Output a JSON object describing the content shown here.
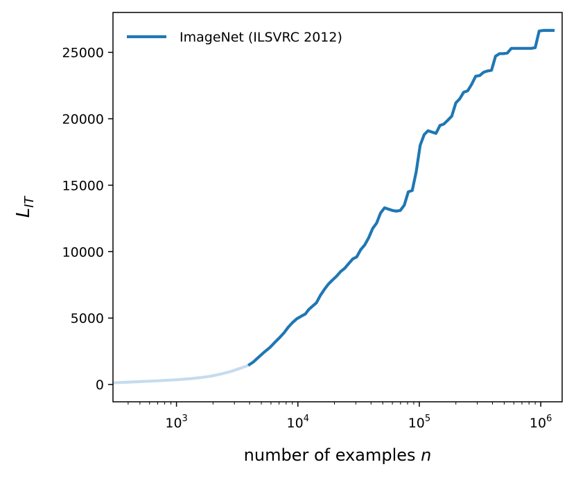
{
  "chart_data": {
    "type": "line",
    "title": "",
    "xlabel": {
      "text": "number of examples ",
      "italic": "n"
    },
    "ylabel": {
      "main": "L",
      "sub": "IT"
    },
    "x_scale": "log",
    "xlim": [
      300,
      1500000
    ],
    "ylim": [
      -1300,
      28000
    ],
    "grid": false,
    "legend": {
      "location": "top-left",
      "entries": [
        "ImageNet (ILSVRC 2012)"
      ]
    },
    "x_major_ticks": [
      {
        "value": 1000,
        "base": "10",
        "exp": "3"
      },
      {
        "value": 10000,
        "base": "10",
        "exp": "4"
      },
      {
        "value": 100000,
        "base": "10",
        "exp": "5"
      },
      {
        "value": 1000000,
        "base": "10",
        "exp": "6"
      }
    ],
    "y_ticks": [
      {
        "value": 0,
        "label": "0"
      },
      {
        "value": 5000,
        "label": "5000"
      },
      {
        "value": 10000,
        "label": "10000"
      },
      {
        "value": 15000,
        "label": "15000"
      },
      {
        "value": 20000,
        "label": "20000"
      },
      {
        "value": 25000,
        "label": "25000"
      }
    ],
    "series": [
      {
        "name": "ImageNet (ILSVRC 2012) – faded segment",
        "color": "#c6dbef",
        "x": [
          300,
          400,
          500,
          700,
          1000,
          1300,
          1600,
          1900,
          2300,
          2800,
          3300,
          3900
        ],
        "y": [
          130,
          180,
          220,
          280,
          360,
          440,
          530,
          620,
          780,
          980,
          1200,
          1440
        ]
      },
      {
        "name": "ImageNet (ILSVRC 2012)",
        "color": "#1f77b4",
        "x": [
          3900,
          4300,
          4800,
          5300,
          5900,
          6500,
          7100,
          7700,
          8300,
          9000,
          9800,
          10700,
          11500,
          12300,
          13200,
          14200,
          15300,
          16500,
          17800,
          19200,
          20800,
          22500,
          24300,
          26200,
          28300,
          30500,
          32900,
          35500,
          38300,
          41300,
          44500,
          47900,
          51700,
          55700,
          60000,
          64700,
          69700,
          75200,
          81100,
          87400,
          94200,
          101600,
          109500,
          118000,
          127000,
          137000,
          148000,
          159000,
          172000,
          185000,
          200000,
          215000,
          232000,
          250000,
          270000,
          291000,
          314000,
          338000,
          365000,
          393000,
          424000,
          457000,
          493000,
          531000,
          573000,
          617000,
          666000,
          718000,
          774000,
          834000,
          900000,
          970000,
          1050000,
          1130000,
          1220000,
          1300000
        ],
        "y": [
          1440,
          1700,
          2100,
          2450,
          2800,
          3200,
          3550,
          3900,
          4300,
          4650,
          4950,
          5150,
          5300,
          5650,
          5900,
          6150,
          6700,
          7150,
          7550,
          7850,
          8150,
          8500,
          8750,
          9100,
          9450,
          9600,
          10150,
          10500,
          11050,
          11750,
          12150,
          12900,
          13300,
          13200,
          13100,
          13050,
          13100,
          13500,
          14500,
          14600,
          16000,
          18000,
          18800,
          19100,
          19000,
          18900,
          19500,
          19600,
          19900,
          20200,
          21200,
          21500,
          22000,
          22100,
          22600,
          23200,
          23250,
          23500,
          23600,
          23650,
          24700,
          24900,
          24900,
          24950,
          25300,
          25300,
          25300,
          25300,
          25300,
          25300,
          25350,
          26600,
          26650,
          26650,
          26650,
          26650
        ]
      }
    ]
  }
}
